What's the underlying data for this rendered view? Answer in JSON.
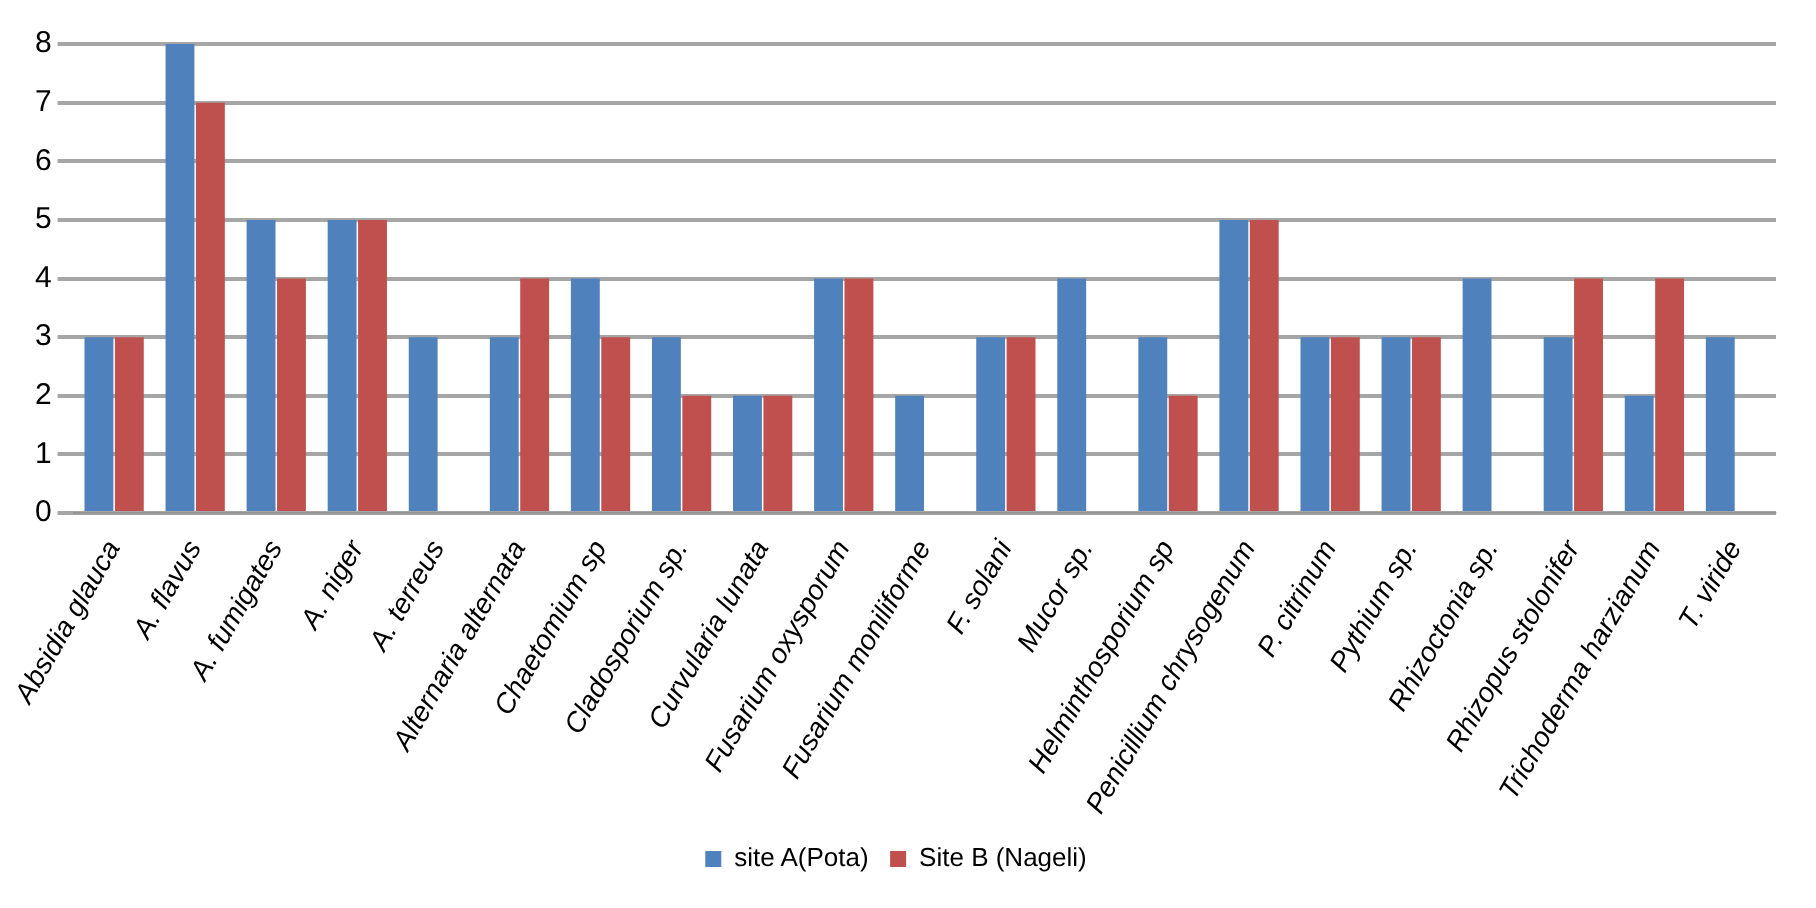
{
  "chart_data": {
    "type": "bar",
    "categories": [
      "Absidia glauca",
      "A. flavus",
      "A. fumigates",
      "A. niger",
      "A. terreus",
      "Alternaria alternata",
      "Chaetomium sp",
      "Cladosporium sp.",
      "Curvularia lunata",
      "Fusarium oxysporum",
      "Fusarium moniliforme",
      "F. solani",
      "Mucor sp.",
      "Helminthosporium sp",
      "Penicillium chrysogenum",
      "P. citrinum",
      "Pythium sp.",
      "Rhizoctonia sp.",
      "Rhizopus stolonifer",
      "Trichoderma harzianum",
      "T. viride"
    ],
    "series": [
      {
        "name": "site A(Pota)",
        "color": "#4f81bd",
        "values": [
          3,
          8,
          5,
          5,
          3,
          3,
          4,
          3,
          2,
          4,
          2,
          3,
          4,
          3,
          5,
          3,
          3,
          4,
          3,
          2,
          3
        ]
      },
      {
        "name": "Site B (Nageli)",
        "color": "#c0504d",
        "values": [
          3,
          7,
          4,
          5,
          0,
          4,
          3,
          2,
          2,
          4,
          0,
          3,
          0,
          2,
          5,
          3,
          3,
          0,
          4,
          4,
          0
        ]
      }
    ],
    "ylim": [
      0,
      8
    ],
    "yticks": [
      0,
      1,
      2,
      3,
      4,
      5,
      6,
      7,
      8
    ],
    "grid": "y",
    "legend": "bottom"
  }
}
